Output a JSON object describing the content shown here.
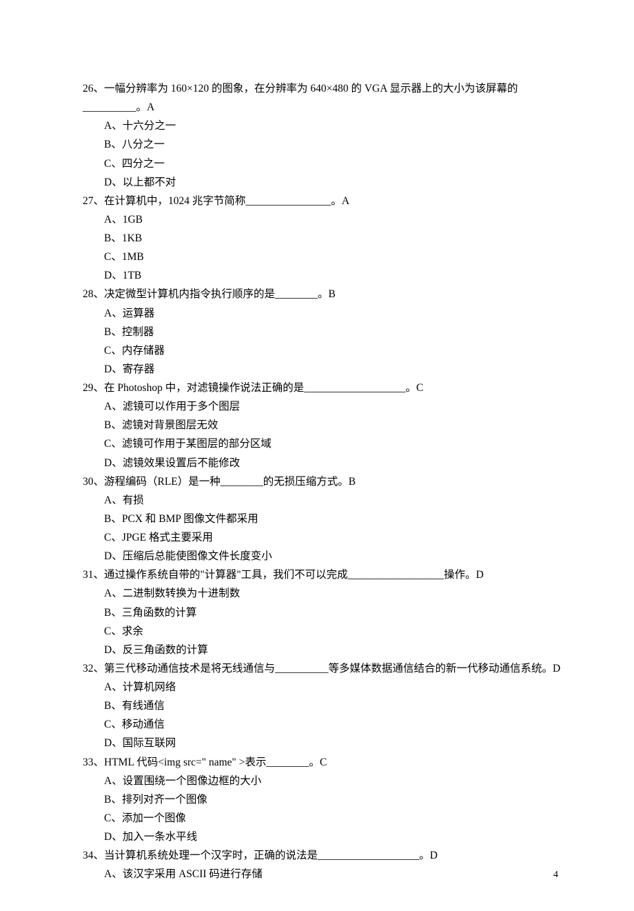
{
  "page_number": "4",
  "questions": [
    {
      "num": "26",
      "text_parts": [
        "26、一幅分辨率为 160×120 的图象，在分辨率为 640×480 的 VGA 显示器上的大小为该屏幕的__________。A"
      ],
      "options": [
        "A、十六分之一",
        "B、八分之一",
        "C、四分之一",
        "D、以上都不对"
      ]
    },
    {
      "num": "27",
      "text_parts": [
        "27、在计算机中，1024 兆字节简称________________。A"
      ],
      "options": [
        "A、1GB",
        "B、1KB",
        "C、1MB",
        "D、1TB"
      ]
    },
    {
      "num": "28",
      "text_parts": [
        "28、决定微型计算机内指令执行顺序的是________。B"
      ],
      "options": [
        "A、运算器",
        "B、控制器",
        "C、内存储器",
        "D、寄存器"
      ]
    },
    {
      "num": "29",
      "text_parts": [
        "29、在 Photoshop 中，对滤镜操作说法正确的是___________________。C"
      ],
      "options": [
        "A、滤镜可以作用于多个图层",
        "B、滤镜对背景图层无效",
        "C、滤镜可作用于某图层的部分区域",
        "D、滤镜效果设置后不能修改"
      ]
    },
    {
      "num": "30",
      "text_parts": [
        "30、游程编码（RLE）是一种________的无损压缩方式。B"
      ],
      "options": [
        "A、有损",
        "B、PCX 和 BMP 图像文件都采用",
        "C、JPGE 格式主要采用",
        "D、压缩后总能使图像文件长度变小"
      ]
    },
    {
      "num": "31",
      "text_parts": [
        "31、通过操作系统自带的\"计算器\"工具，我们不可以完成__________________操作。D"
      ],
      "options": [
        "A、二进制数转换为十进制数",
        "B、三角函数的计算",
        "C、求余",
        "D、反三角函数的计算"
      ]
    },
    {
      "num": "32",
      "text_parts": [
        "32、第三代移动通信技术是将无线通信与__________等多媒体数据通信结合的新一代移动通信系统。D"
      ],
      "options": [
        "A、计算机网络",
        "B、有线通信",
        "C、移动通信",
        "D、国际互联网"
      ]
    },
    {
      "num": "33",
      "text_parts": [
        "33、HTML 代码<img src=\" name\" >表示________。C"
      ],
      "options": [
        "A、设置围绕一个图像边框的大小",
        "B、排列对齐一个图像",
        "C、添加一个图像",
        "D、加入一条水平线"
      ]
    },
    {
      "num": "34",
      "text_parts": [
        "34、当计算机系统处理一个汉字时，正确的说法是___________________。D"
      ],
      "options": [
        "A、该汉字采用 ASCII 码进行存储"
      ]
    }
  ]
}
